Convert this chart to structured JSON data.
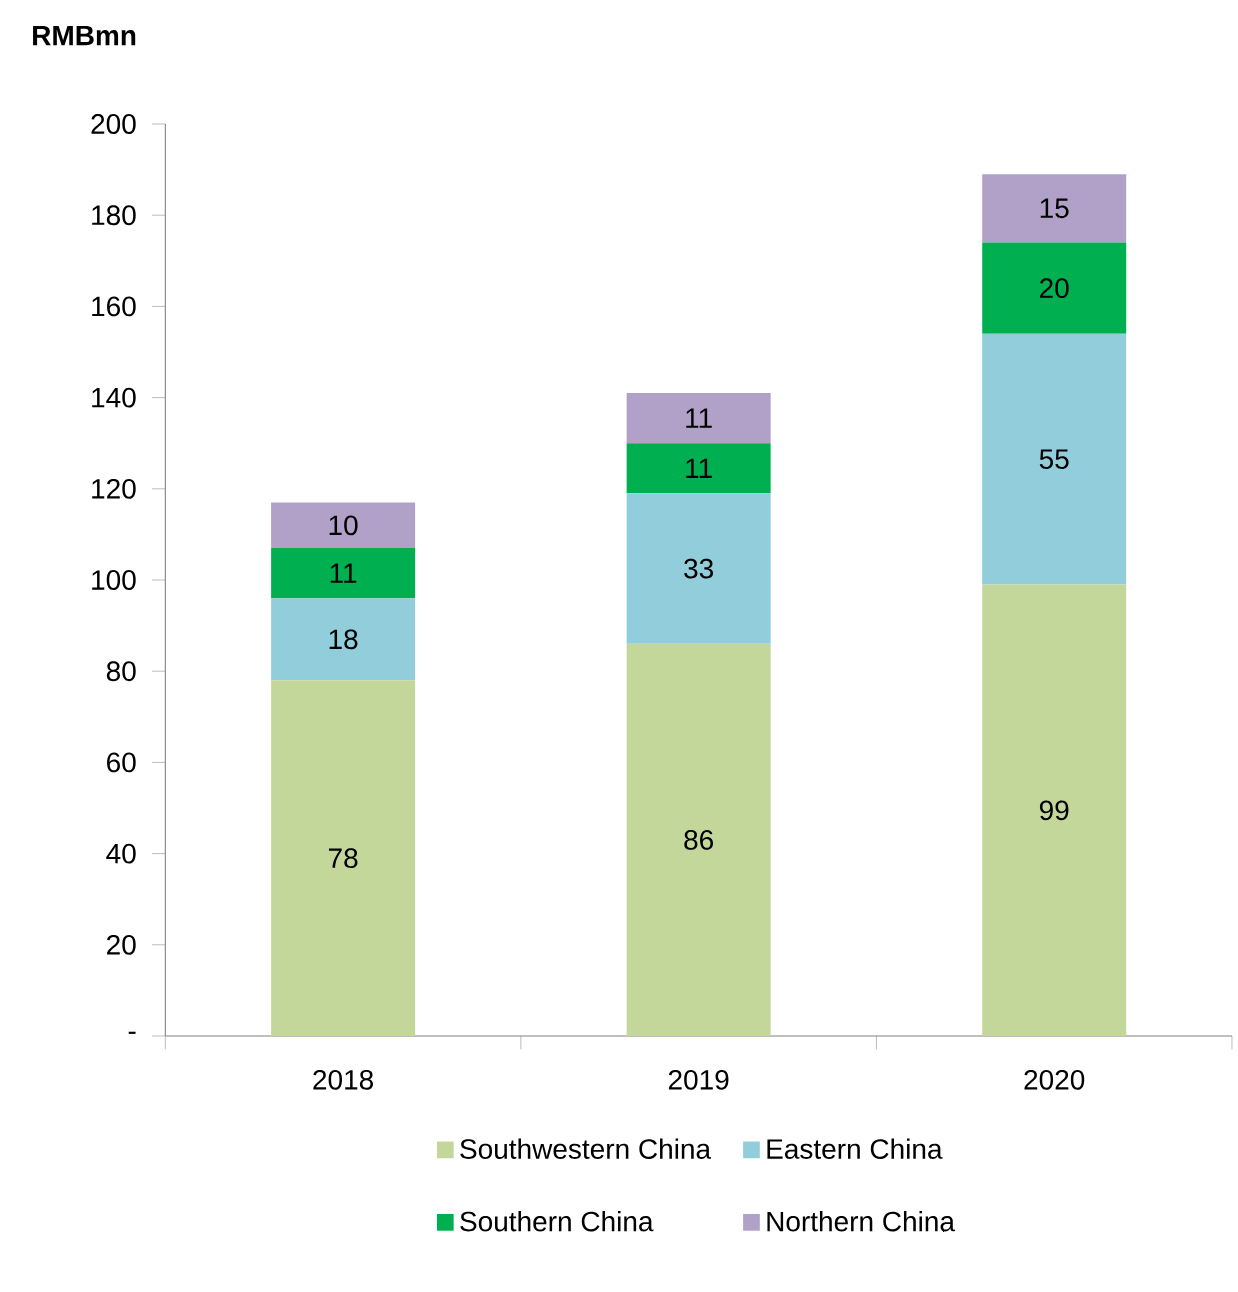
{
  "chart_data": {
    "type": "bar",
    "stacked": true,
    "ylabel": "RMBmn",
    "categories": [
      "2018",
      "2019",
      "2020"
    ],
    "series": [
      {
        "name": "Southwestern China",
        "color": "#c4d79b",
        "values": [
          78,
          86,
          99
        ]
      },
      {
        "name": "Eastern China",
        "color": "#92cddc",
        "values": [
          18,
          33,
          55
        ]
      },
      {
        "name": "Southern China",
        "color": "#00b050",
        "values": [
          11,
          11,
          20
        ]
      },
      {
        "name": "Northern China",
        "color": "#b1a0c7",
        "values": [
          10,
          11,
          15
        ]
      }
    ],
    "ylim": [
      0,
      200
    ],
    "yticks": [
      {
        "value": 0,
        "label": "-"
      },
      20,
      40,
      60,
      80,
      100,
      120,
      140,
      160,
      180,
      200
    ],
    "data_labels": true,
    "grid": false,
    "legend": "bottom"
  }
}
